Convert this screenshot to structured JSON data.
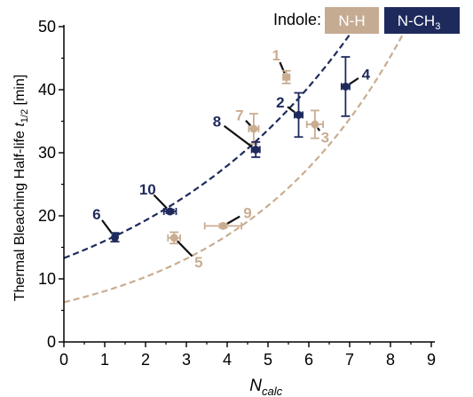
{
  "chart_data": {
    "type": "scatter",
    "xlabel_main": "N",
    "xlabel_sub": "calc",
    "ylabel_main": "Thermal Bleaching Half-life ",
    "ylabel_var": "t",
    "ylabel_sub": "1/2",
    "ylabel_unit": " [min]",
    "xlim": [
      0,
      9
    ],
    "ylim": [
      0,
      50
    ],
    "x_ticks": [
      "0",
      "1",
      "2",
      "3",
      "4",
      "5",
      "6",
      "7",
      "8",
      "9"
    ],
    "y_ticks": [
      "0",
      "10",
      "20",
      "30",
      "40",
      "50"
    ],
    "grid": false,
    "legend": {
      "title": "Indole:",
      "placement": "top-right",
      "entries": [
        {
          "label": "N-H"
        },
        {
          "label_main": "N-CH",
          "label_sub": "3"
        }
      ]
    },
    "colors": {
      "nh": "#c9ad92",
      "nme": "#1f2a5c",
      "nh_label_bg": "#c6ab93",
      "nme_label_bg": "#1f2a5c"
    },
    "series": [
      {
        "key": "nh",
        "fit": {
          "a": 6.3,
          "b": 0.2465
        },
        "points": [
          {
            "label": "1",
            "x": 5.45,
            "y": 42.0,
            "xerr": 0.08,
            "yerr": 1.0,
            "lx": 5.2,
            "ly": 45.5
          },
          {
            "label": "3",
            "x": 6.15,
            "y": 34.5,
            "xerr": 0.2,
            "yerr": 2.2,
            "lx": 6.4,
            "ly": 32.5
          },
          {
            "label": "5",
            "x": 2.7,
            "y": 16.5,
            "xerr": 0.15,
            "yerr": 0.9,
            "lx": 3.3,
            "ly": 12.7
          },
          {
            "label": "7",
            "x": 4.65,
            "y": 33.8,
            "xerr": 0.12,
            "yerr": 2.4,
            "lx": 4.3,
            "ly": 36.0
          },
          {
            "label": "9",
            "x": 3.9,
            "y": 18.4,
            "xerr": 0.45,
            "yerr": 0.3,
            "lx": 4.5,
            "ly": 20.5
          }
        ]
      },
      {
        "key": "nme",
        "fit": {
          "a": 13.3,
          "b": 0.1855
        },
        "points": [
          {
            "label": "2",
            "x": 5.75,
            "y": 36.0,
            "xerr": 0.1,
            "yerr": 3.5,
            "lx": 5.3,
            "ly": 38.0
          },
          {
            "label": "4",
            "x": 6.9,
            "y": 40.5,
            "xerr": 0.1,
            "yerr": 4.7,
            "lx": 7.4,
            "ly": 42.5
          },
          {
            "label": "6",
            "x": 1.25,
            "y": 16.6,
            "xerr": 0.05,
            "yerr": 0.7,
            "lx": 0.8,
            "ly": 20.3
          },
          {
            "label": "8",
            "x": 4.7,
            "y": 30.5,
            "xerr": 0.1,
            "yerr": 1.2,
            "lx": 3.75,
            "ly": 35.0
          },
          {
            "label": "10",
            "x": 2.6,
            "y": 20.7,
            "xerr": 0.15,
            "yerr": 0.3,
            "lx": 2.05,
            "ly": 24.2
          }
        ]
      }
    ]
  }
}
